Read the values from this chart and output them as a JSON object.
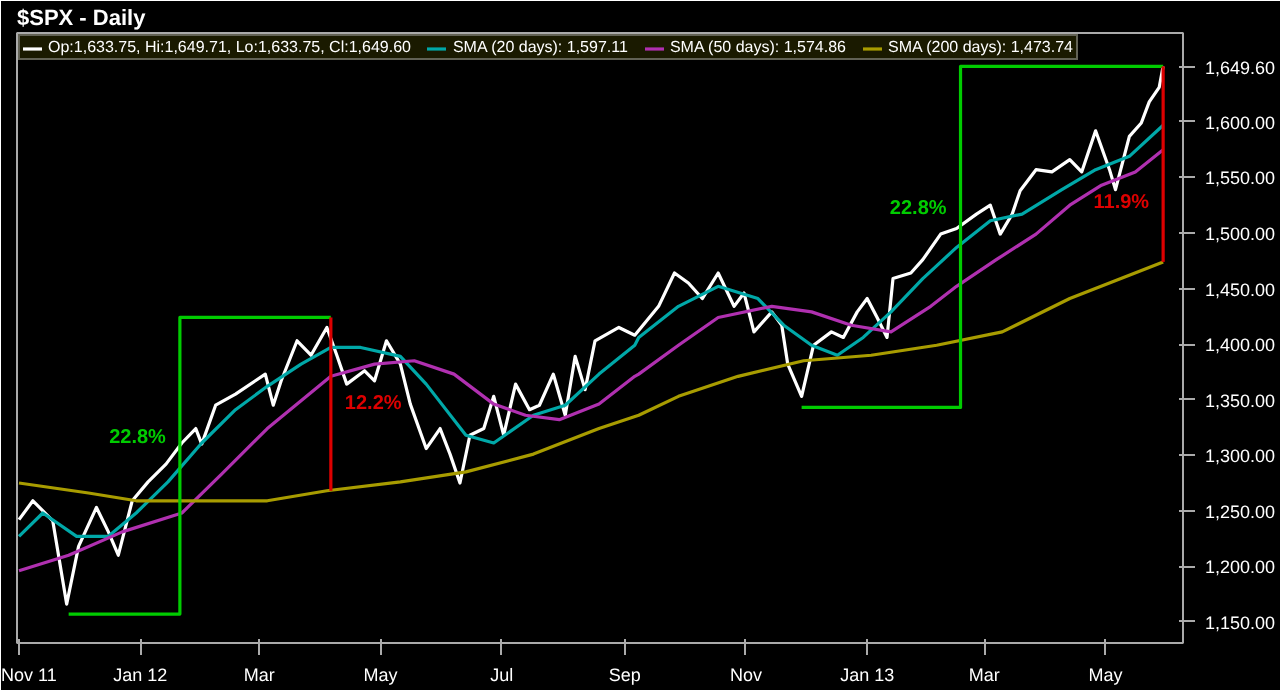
{
  "chart_data": {
    "type": "line",
    "title": "$SPX - Daily",
    "x": [
      "2011-11-01",
      "2011-11-08",
      "2011-11-18",
      "2011-11-25",
      "2011-12-01",
      "2011-12-10",
      "2011-12-16",
      "2011-12-21",
      "2011-12-28",
      "2012-01-05",
      "2012-01-14",
      "2012-01-22",
      "2012-01-29",
      "2012-02-01",
      "2012-02-08",
      "2012-02-18",
      "2012-02-28",
      "2012-03-04",
      "2012-03-08",
      "2012-03-12",
      "2012-03-20",
      "2012-03-27",
      "2012-04-04",
      "2012-04-09",
      "2012-04-14",
      "2012-04-23",
      "2012-04-28",
      "2012-05-04",
      "2012-05-11",
      "2012-05-16",
      "2012-05-24",
      "2012-05-31",
      "2012-06-05",
      "2012-06-10",
      "2012-06-15",
      "2012-06-22",
      "2012-06-27",
      "2012-07-02",
      "2012-07-08",
      "2012-07-15",
      "2012-07-20",
      "2012-07-27",
      "2012-08-02",
      "2012-08-07",
      "2012-08-12",
      "2012-08-17",
      "2012-08-29",
      "2012-09-06",
      "2012-09-18",
      "2012-09-26",
      "2012-10-03",
      "2012-10-10",
      "2012-10-18",
      "2012-10-26",
      "2012-10-31",
      "2012-11-05",
      "2012-11-14",
      "2012-11-19",
      "2012-11-22",
      "2012-11-29",
      "2012-12-05",
      "2012-12-14",
      "2012-12-20",
      "2012-12-27",
      "2013-01-01",
      "2013-01-06",
      "2013-01-11",
      "2013-01-14",
      "2013-01-23",
      "2013-01-29",
      "2013-02-07",
      "2013-02-15",
      "2013-02-25",
      "2013-03-04",
      "2013-03-09",
      "2013-03-15",
      "2013-03-19",
      "2013-03-27",
      "2013-04-04",
      "2013-04-13",
      "2013-04-19",
      "2013-04-26",
      "2013-05-03",
      "2013-05-06",
      "2013-05-13",
      "2013-05-19",
      "2013-05-23",
      "2013-05-28",
      "2013-05-30"
    ],
    "series": [
      {
        "name": "Op:1,633.75, Hi:1,649.71, Lo:1,633.75, Cl:1,649.60",
        "color": "#ffffff",
        "values": [
          1242,
          1259,
          1241,
          1166,
          1218,
          1253,
          1231,
          1210,
          1259,
          1276,
          1292,
          1311,
          1324,
          1310,
          1345,
          1355,
          1367,
          1373,
          1345,
          1367,
          1403,
          1390,
          1415,
          1390,
          1364,
          1376,
          1367,
          1403,
          1382,
          1346,
          1306,
          1324,
          1301,
          1275,
          1318,
          1324,
          1353,
          1318,
          1364,
          1341,
          1345,
          1373,
          1336,
          1389,
          1359,
          1403,
          1415,
          1408,
          1434,
          1464,
          1455,
          1441,
          1464,
          1434,
          1446,
          1411,
          1429,
          1417,
          1382,
          1353,
          1399,
          1411,
          1406,
          1429,
          1441,
          1424,
          1406,
          1459,
          1464,
          1476,
          1499,
          1504,
          1517,
          1525,
          1499,
          1517,
          1538,
          1557,
          1555,
          1566,
          1555,
          1592,
          1557,
          1539,
          1587,
          1599,
          1618,
          1631,
          1650
        ]
      },
      {
        "name": "SMA (20 days): 1,597.11",
        "color": "#00a8a8",
        "x": [
          "2011-11-01",
          "2011-11-13",
          "2011-11-30",
          "2011-12-16",
          "2011-12-30",
          "2012-01-15",
          "2012-02-01",
          "2012-02-18",
          "2012-03-05",
          "2012-03-22",
          "2012-04-06",
          "2012-04-21",
          "2012-05-11",
          "2012-05-24",
          "2012-06-13",
          "2012-06-27",
          "2012-07-17",
          "2012-08-02",
          "2012-08-19",
          "2012-09-06",
          "2012-09-08",
          "2012-09-28",
          "2012-10-18",
          "2012-11-07",
          "2012-11-20",
          "2012-12-04",
          "2012-12-17",
          "2012-12-30",
          "2013-01-13",
          "2013-01-29",
          "2013-02-15",
          "2013-03-04",
          "2013-03-20",
          "2013-04-09",
          "2013-04-26",
          "2013-05-13",
          "2013-05-30"
        ],
        "values": [
          1227,
          1248,
          1227,
          1227,
          1248,
          1276,
          1311,
          1341,
          1362,
          1382,
          1397,
          1397,
          1389,
          1364,
          1318,
          1311,
          1336,
          1345,
          1373,
          1399,
          1406,
          1434,
          1452,
          1441,
          1417,
          1399,
          1390,
          1406,
          1429,
          1459,
          1487,
          1511,
          1517,
          1539,
          1557,
          1569,
          1597
        ]
      },
      {
        "name": "SMA (50 days): 1,574.86",
        "color": "#b030b0",
        "x": [
          "2011-11-01",
          "2011-11-26",
          "2011-12-23",
          "2012-01-22",
          "2012-02-11",
          "2012-03-05",
          "2012-04-06",
          "2012-04-28",
          "2012-05-18",
          "2012-06-07",
          "2012-06-27",
          "2012-07-13",
          "2012-07-30",
          "2012-08-19",
          "2012-09-06",
          "2012-09-08",
          "2012-09-28",
          "2012-10-18",
          "2012-11-14",
          "2012-12-04",
          "2012-12-24",
          "2013-01-13",
          "2013-02-02",
          "2013-02-15",
          "2013-03-07",
          "2013-03-27",
          "2013-04-13",
          "2013-04-29",
          "2013-05-16",
          "2013-05-30"
        ],
        "values": [
          1196,
          1210,
          1231,
          1248,
          1283,
          1324,
          1371,
          1382,
          1385,
          1373,
          1346,
          1336,
          1332,
          1346,
          1371,
          1373,
          1399,
          1424,
          1434,
          1429,
          1417,
          1411,
          1434,
          1452,
          1476,
          1499,
          1525,
          1543,
          1555,
          1575
        ]
      },
      {
        "name": "SMA (200 days): 1,473.74",
        "color": "#a89c00",
        "x": [
          "2011-11-01",
          "2011-12-06",
          "2011-12-30",
          "2012-02-01",
          "2012-03-05",
          "2012-04-04",
          "2012-05-11",
          "2012-06-13",
          "2012-07-17",
          "2012-08-19",
          "2012-09-08",
          "2012-09-28",
          "2012-10-28",
          "2012-11-30",
          "2013-01-03",
          "2013-02-05",
          "2013-03-10",
          "2013-04-13",
          "2013-05-30"
        ],
        "values": [
          1275,
          1266,
          1259,
          1259,
          1259,
          1268,
          1276,
          1285,
          1301,
          1324,
          1336,
          1353,
          1371,
          1385,
          1390,
          1399,
          1411,
          1441,
          1474
        ]
      },
      {
        "color": "#00cc00",
        "x": [
          "2011-11-26",
          "2012-01-21",
          "2012-01-21",
          "2012-04-06"
        ],
        "values": [
          1157,
          1157,
          1424,
          1424
        ]
      },
      {
        "color": "#dd0000",
        "x": [
          "2012-04-06",
          "2012-04-06"
        ],
        "values": [
          1424,
          1268
        ]
      },
      {
        "color": "#00cc00",
        "x": [
          "2012-11-29",
          "2013-02-17",
          "2013-02-17",
          "2013-05-30"
        ],
        "values": [
          1343,
          1343,
          1650,
          1650
        ]
      },
      {
        "color": "#dd0000",
        "x": [
          "2013-05-30",
          "2013-05-30"
        ],
        "values": [
          1650,
          1474
        ]
      }
    ],
    "xlim": [
      "2011-10-31",
      "2013-06-09"
    ],
    "xticks": [
      {
        "value": "2011-11-01",
        "label": "Nov 11"
      },
      {
        "value": "2012-01-01",
        "label": "Jan 12"
      },
      {
        "value": "2012-03-01",
        "label": "Mar"
      },
      {
        "value": "2012-05-01",
        "label": "May"
      },
      {
        "value": "2012-07-01",
        "label": "Jul"
      },
      {
        "value": "2012-09-01",
        "label": "Sep"
      },
      {
        "value": "2012-11-01",
        "label": "Nov"
      },
      {
        "value": "2013-01-01",
        "label": "Jan 13"
      },
      {
        "value": "2013-03-01",
        "label": "Mar"
      },
      {
        "value": "2013-05-01",
        "label": "May"
      }
    ],
    "ylim": [
      1131,
      1680
    ],
    "yticks": [
      {
        "value": 1150,
        "label": "1,150.00"
      },
      {
        "value": 1200,
        "label": "1,200.00"
      },
      {
        "value": 1250,
        "label": "1,250.00"
      },
      {
        "value": 1300,
        "label": "1,300.00"
      },
      {
        "value": 1350,
        "label": "1,350.00"
      },
      {
        "value": 1400,
        "label": "1,400.00"
      },
      {
        "value": 1450,
        "label": "1,450.00"
      },
      {
        "value": 1500,
        "label": "1,500.00"
      },
      {
        "value": 1550,
        "label": "1,550.00"
      },
      {
        "value": 1600,
        "label": "1,600.00"
      },
      {
        "value": 1649.6,
        "label": "1,649.60"
      }
    ],
    "annotations": [
      "22.8%",
      "12.2%",
      "22.8%",
      "11.9%"
    ],
    "legend": "top",
    "grid": false,
    "line_style": "solid"
  }
}
